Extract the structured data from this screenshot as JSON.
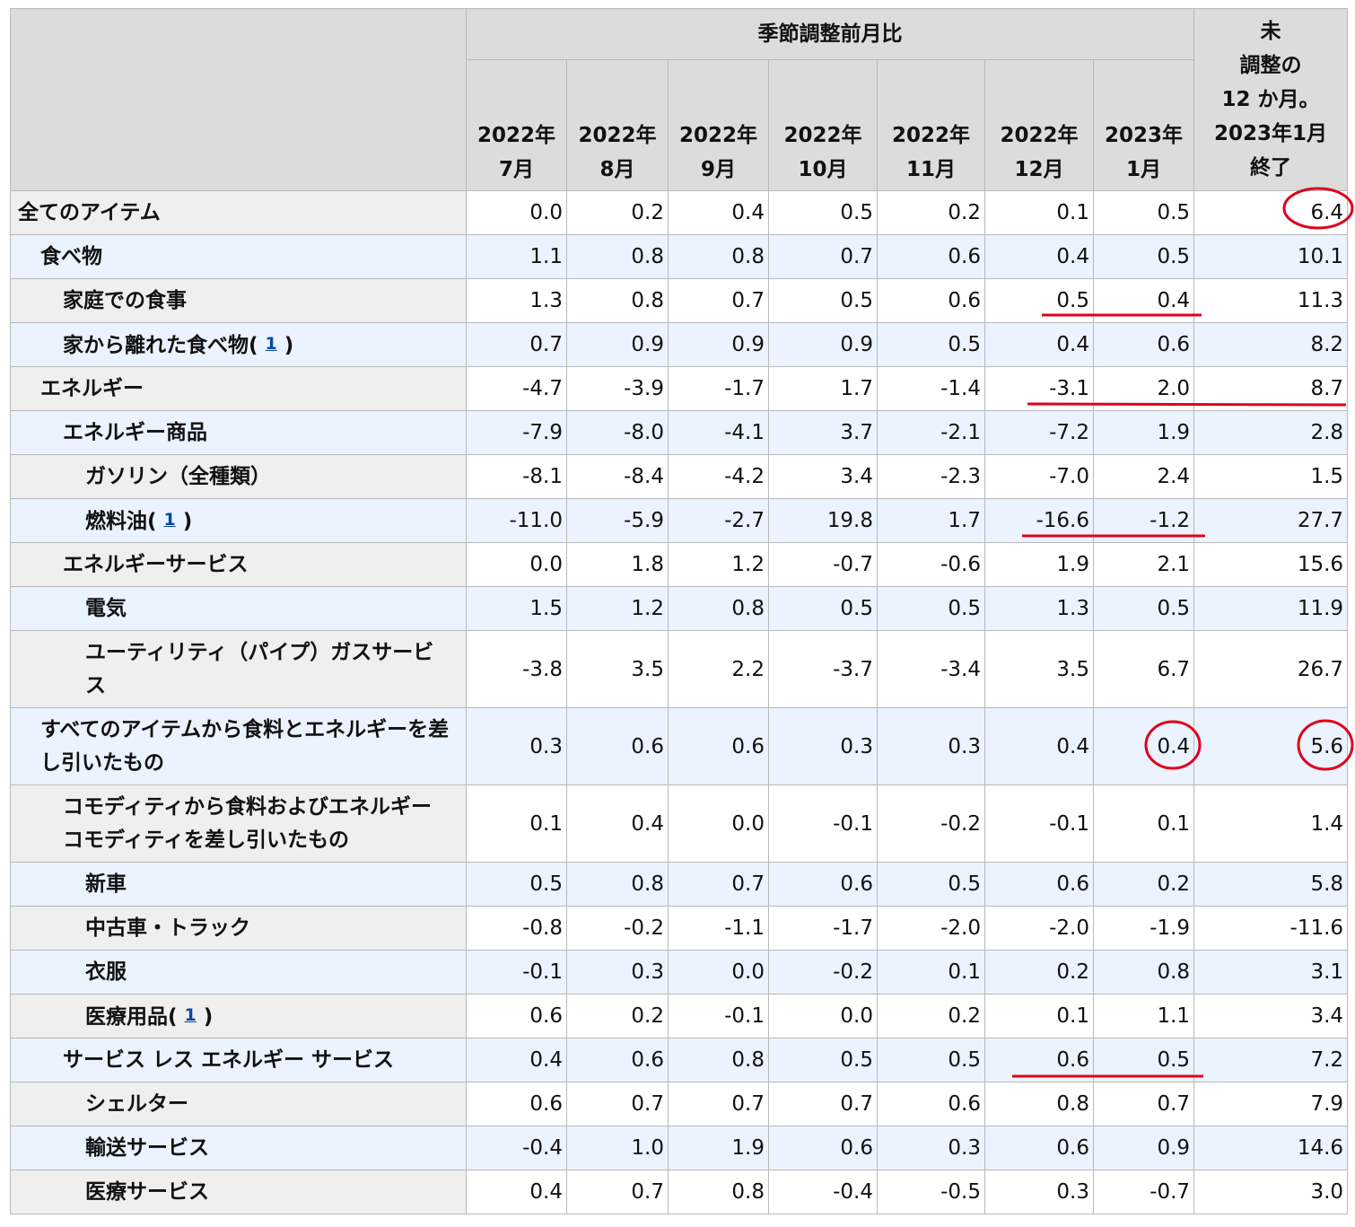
{
  "header": {
    "group_label": "季節調整前月比",
    "last_col": [
      "未",
      "調整の",
      "12 か月。",
      "2023年1月",
      "終了"
    ],
    "months": [
      [
        "2022年",
        "7月"
      ],
      [
        "2022年",
        "8月"
      ],
      [
        "2022年",
        "9月"
      ],
      [
        "2022年",
        "10月"
      ],
      [
        "2022年",
        "11月"
      ],
      [
        "2022年",
        "12月"
      ],
      [
        "2023年",
        "1月"
      ]
    ]
  },
  "rows": [
    {
      "label": "全てのアイテム",
      "values": [
        "0.0",
        "0.2",
        "0.4",
        "0.5",
        "0.2",
        "0.1",
        "0.5",
        "6.4"
      ]
    },
    {
      "label": "食べ物",
      "values": [
        "1.1",
        "0.8",
        "0.8",
        "0.7",
        "0.6",
        "0.4",
        "0.5",
        "10.1"
      ]
    },
    {
      "label": "家庭での食事",
      "values": [
        "1.3",
        "0.8",
        "0.7",
        "0.5",
        "0.6",
        "0.5",
        "0.4",
        "11.3"
      ]
    },
    {
      "label": "家から離れた食べ物",
      "footnote": "1",
      "values": [
        "0.7",
        "0.9",
        "0.9",
        "0.9",
        "0.5",
        "0.4",
        "0.6",
        "8.2"
      ]
    },
    {
      "label": "エネルギー",
      "values": [
        "-4.7",
        "-3.9",
        "-1.7",
        "1.7",
        "-1.4",
        "-3.1",
        "2.0",
        "8.7"
      ]
    },
    {
      "label": "エネルギー商品",
      "values": [
        "-7.9",
        "-8.0",
        "-4.1",
        "3.7",
        "-2.1",
        "-7.2",
        "1.9",
        "2.8"
      ]
    },
    {
      "label": "ガソリン（全種類）",
      "values": [
        "-8.1",
        "-8.4",
        "-4.2",
        "3.4",
        "-2.3",
        "-7.0",
        "2.4",
        "1.5"
      ]
    },
    {
      "label": "燃料油",
      "footnote": "1",
      "values": [
        "-11.0",
        "-5.9",
        "-2.7",
        "19.8",
        "1.7",
        "-16.6",
        "-1.2",
        "27.7"
      ]
    },
    {
      "label": "エネルギーサービス",
      "values": [
        "0.0",
        "1.8",
        "1.2",
        "-0.7",
        "-0.6",
        "1.9",
        "2.1",
        "15.6"
      ]
    },
    {
      "label": "電気",
      "values": [
        "1.5",
        "1.2",
        "0.8",
        "0.5",
        "0.5",
        "1.3",
        "0.5",
        "11.9"
      ]
    },
    {
      "label": "ユーティリティ（パイプ）ガスサービス",
      "values": [
        "-3.8",
        "3.5",
        "2.2",
        "-3.7",
        "-3.4",
        "3.5",
        "6.7",
        "26.7"
      ]
    },
    {
      "label": "すべてのアイテムから食料とエネルギーを差し引いたもの",
      "values": [
        "0.3",
        "0.6",
        "0.6",
        "0.3",
        "0.3",
        "0.4",
        "0.4",
        "5.6"
      ]
    },
    {
      "label": "コモディティから食料およびエネルギーコモディティを差し引いたもの",
      "values": [
        "0.1",
        "0.4",
        "0.0",
        "-0.1",
        "-0.2",
        "-0.1",
        "0.1",
        "1.4"
      ]
    },
    {
      "label": "新車",
      "values": [
        "0.5",
        "0.8",
        "0.7",
        "0.6",
        "0.5",
        "0.6",
        "0.2",
        "5.8"
      ]
    },
    {
      "label": "中古車・トラック",
      "values": [
        "-0.8",
        "-0.2",
        "-1.1",
        "-1.7",
        "-2.0",
        "-2.0",
        "-1.9",
        "-11.6"
      ]
    },
    {
      "label": "衣服",
      "values": [
        "-0.1",
        "0.3",
        "0.0",
        "-0.2",
        "0.1",
        "0.2",
        "0.8",
        "3.1"
      ]
    },
    {
      "label": "医療用品",
      "footnote": "1",
      "values": [
        "0.6",
        "0.2",
        "-0.1",
        "0.0",
        "0.2",
        "0.1",
        "1.1",
        "3.4"
      ]
    },
    {
      "label": "サービス レス エネルギー サービス",
      "values": [
        "0.4",
        "0.6",
        "0.8",
        "0.5",
        "0.5",
        "0.6",
        "0.5",
        "7.2"
      ]
    },
    {
      "label": "シェルター",
      "values": [
        "0.6",
        "0.7",
        "0.7",
        "0.7",
        "0.6",
        "0.8",
        "0.7",
        "7.9"
      ]
    },
    {
      "label": "輸送サービス",
      "values": [
        "-0.4",
        "1.0",
        "1.9",
        "0.6",
        "0.3",
        "0.6",
        "0.9",
        "14.6"
      ]
    },
    {
      "label": "医療サービス",
      "values": [
        "0.4",
        "0.7",
        "0.8",
        "-0.4",
        "-0.5",
        "0.3",
        "-0.7",
        "3.0"
      ]
    }
  ],
  "annotation_color": "#e0001b"
}
